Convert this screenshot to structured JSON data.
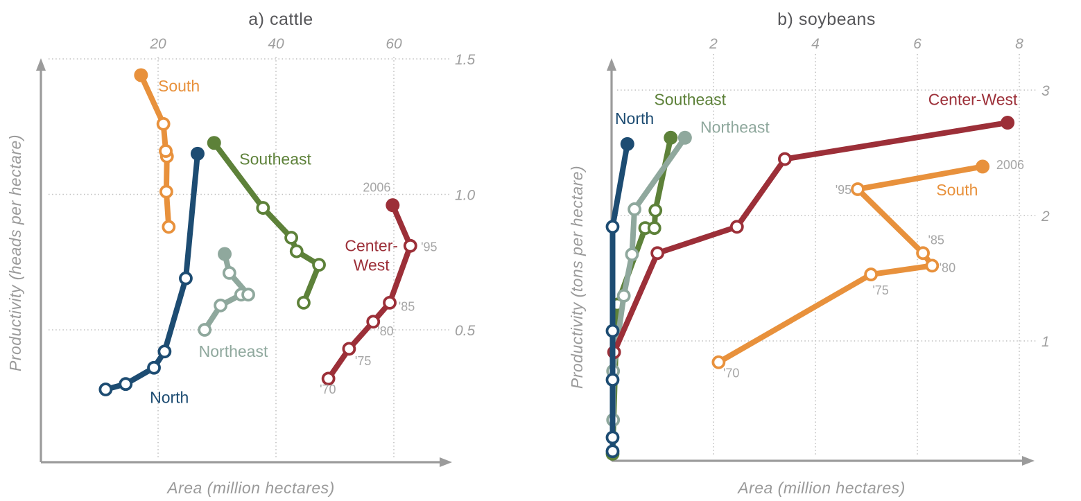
{
  "figure": {
    "background": "#ffffff",
    "style": {
      "axis_color": "#9B9B9B",
      "grid_color": "#C0C0C0",
      "tick_text_color": "#9E9E9E",
      "year_text_color": "#A6A6A6",
      "title_color": "#57575A",
      "marker_fill": "#FFFFFF"
    }
  },
  "chart_data": [
    {
      "type": "line",
      "title": "a) cattle",
      "xlabel": "Area (million hectares)",
      "ylabel": "Productivity (heads per hectare)",
      "xlim": [
        0,
        81
      ],
      "ylim": [
        0,
        1.62
      ],
      "x_ticks": [
        20,
        40,
        60
      ],
      "x_tick_labels": [
        "20",
        "40",
        "60"
      ],
      "y_ticks": [
        0.5,
        1.0,
        1.5
      ],
      "y_tick_labels": [
        "0.5",
        "1.0",
        "1.5"
      ],
      "grid": "dotted",
      "legend_position": "inline-labels",
      "series": [
        {
          "name": "Southeast",
          "color": "#5D8139",
          "years": [
            "1970",
            "1975",
            "1980",
            "1985",
            "1995",
            "2006"
          ],
          "points": [
            [
              44.7,
              0.6
            ],
            [
              47.3,
              0.74
            ],
            [
              43.5,
              0.79
            ],
            [
              42.6,
              0.84
            ],
            [
              37.8,
              0.95
            ],
            [
              29.5,
              1.19
            ]
          ],
          "label": {
            "lines": [
              "Southeast"
            ],
            "x": 33.8,
            "y": 1.11,
            "anchor": "start"
          }
        },
        {
          "name": "Northeast",
          "color": "#8FA89D",
          "years": [
            "1970",
            "1975",
            "1980",
            "1985",
            "1995",
            "2006"
          ],
          "points": [
            [
              27.9,
              0.5
            ],
            [
              30.6,
              0.59
            ],
            [
              34.1,
              0.63
            ],
            [
              35.3,
              0.63
            ],
            [
              32.1,
              0.71
            ],
            [
              31.3,
              0.78
            ]
          ],
          "label": {
            "lines": [
              "Northeast"
            ],
            "x": 26.9,
            "y": 0.4,
            "anchor": "start"
          }
        },
        {
          "name": "Center-West",
          "color": "#9C2F38",
          "years": [
            "1970",
            "1975",
            "1980",
            "1985",
            "1995",
            "2006"
          ],
          "points": [
            [
              48.9,
              0.32
            ],
            [
              52.4,
              0.43
            ],
            [
              56.5,
              0.53
            ],
            [
              59.3,
              0.6
            ],
            [
              62.8,
              0.81
            ],
            [
              59.8,
              0.96
            ]
          ],
          "label": {
            "lines": [
              "Center-",
              "West"
            ],
            "x": 56.2,
            "y": 0.79,
            "anchor": "middle"
          }
        },
        {
          "name": "South",
          "color": "#E8913C",
          "years": [
            "1970",
            "1975",
            "1980",
            "1985",
            "1995",
            "2006"
          ],
          "points": [
            [
              21.8,
              0.88
            ],
            [
              21.4,
              1.01
            ],
            [
              21.5,
              1.14
            ],
            [
              21.3,
              1.16
            ],
            [
              20.9,
              1.26
            ],
            [
              17.1,
              1.44
            ]
          ],
          "label": {
            "lines": [
              "South"
            ],
            "x": 20.0,
            "y": 1.38,
            "anchor": "start"
          }
        },
        {
          "name": "North",
          "color": "#1D4C72",
          "years": [
            "1970",
            "1975",
            "1980",
            "1985",
            "1995",
            "2006"
          ],
          "points": [
            [
              11.1,
              0.28
            ],
            [
              14.5,
              0.3
            ],
            [
              19.3,
              0.36
            ],
            [
              21.1,
              0.42
            ],
            [
              24.7,
              0.69
            ],
            [
              26.7,
              1.15
            ]
          ],
          "label": {
            "lines": [
              "North"
            ],
            "x": 18.6,
            "y": 0.23,
            "anchor": "start"
          }
        }
      ],
      "year_annotations": [
        {
          "text": "2006",
          "x": 57.1,
          "y": 1.01,
          "anchor": "middle"
        },
        {
          "text": "'95",
          "x": 64.6,
          "y": 0.79,
          "anchor": "start"
        },
        {
          "text": "'85",
          "x": 60.8,
          "y": 0.57,
          "anchor": "start"
        },
        {
          "text": "'80",
          "x": 57.2,
          "y": 0.48,
          "anchor": "start"
        },
        {
          "text": "'75",
          "x": 53.4,
          "y": 0.37,
          "anchor": "start"
        },
        {
          "text": "'70",
          "x": 48.8,
          "y": 0.265,
          "anchor": "middle"
        }
      ]
    },
    {
      "type": "line",
      "title": "b) soybeans",
      "xlabel": "Area (million hectares)",
      "ylabel": "Productivity (tons per hectare)",
      "xlim": [
        0,
        8.3
      ],
      "ylim": [
        0,
        3.2
      ],
      "x_ticks": [
        2,
        4,
        6,
        8
      ],
      "x_tick_labels": [
        "2",
        "4",
        "6",
        "8"
      ],
      "y_ticks": [
        1,
        2,
        3
      ],
      "y_tick_labels": [
        "1",
        "2",
        "3"
      ],
      "grid": "dotted",
      "legend_position": "inline-labels",
      "series": [
        {
          "name": "Southeast",
          "color": "#5D8139",
          "years": [
            "1970",
            "1975",
            "1980",
            "1985",
            "1995",
            "2006"
          ],
          "points": [
            [
              0.02,
              0.1
            ],
            [
              0.11,
              1.29
            ],
            [
              0.66,
              1.9
            ],
            [
              0.84,
              1.9
            ],
            [
              0.86,
              2.04
            ],
            [
              1.16,
              2.62
            ]
          ],
          "label": {
            "lines": [
              "Southeast"
            ],
            "x": 1.54,
            "y": 2.88,
            "anchor": "middle"
          }
        },
        {
          "name": "Northeast",
          "color": "#8FA89D",
          "years": [
            "1970",
            "1975",
            "1980",
            "1985",
            "1995",
            "2006"
          ],
          "points": [
            [
              0.03,
              0.37
            ],
            [
              0.03,
              0.76
            ],
            [
              0.24,
              1.36
            ],
            [
              0.4,
              1.69
            ],
            [
              0.45,
              2.05
            ],
            [
              1.44,
              2.62
            ]
          ],
          "label": {
            "lines": [
              "Northeast"
            ],
            "x": 2.42,
            "y": 2.66,
            "anchor": "middle"
          }
        },
        {
          "name": "Center-West",
          "color": "#9C2F38",
          "years": [
            "1970",
            "1975",
            "1980",
            "1985",
            "2006"
          ],
          "points": [
            [
              0.05,
              0.91
            ],
            [
              0.9,
              1.7
            ],
            [
              2.46,
              1.91
            ],
            [
              3.4,
              2.45
            ],
            [
              7.77,
              2.74
            ]
          ],
          "label": {
            "lines": [
              "Center-West"
            ],
            "x": 7.09,
            "y": 2.88,
            "anchor": "middle"
          }
        },
        {
          "name": "South",
          "color": "#E8913C",
          "years": [
            "1970",
            "1975",
            "1980",
            "1985",
            "1995",
            "2006"
          ],
          "points": [
            [
              2.1,
              0.83
            ],
            [
              5.09,
              1.53
            ],
            [
              6.29,
              1.6
            ],
            [
              6.11,
              1.7
            ],
            [
              4.83,
              2.21
            ],
            [
              7.28,
              2.39
            ]
          ],
          "label": {
            "lines": [
              "South"
            ],
            "x": 6.78,
            "y": 2.16,
            "anchor": "middle"
          }
        },
        {
          "name": "North",
          "color": "#1D4C72",
          "years": [
            "1970",
            "1975",
            "1980",
            "1985",
            "1995",
            "2006"
          ],
          "points": [
            [
              0.02,
              0.12
            ],
            [
              0.02,
              0.23
            ],
            [
              0.02,
              0.69
            ],
            [
              0.02,
              1.08
            ],
            [
              0.02,
              1.91
            ],
            [
              0.31,
              2.57
            ]
          ],
          "label": {
            "lines": [
              "North"
            ],
            "x": 0.45,
            "y": 2.73,
            "anchor": "middle"
          }
        }
      ],
      "year_annotations": [
        {
          "text": "2006",
          "x": 7.55,
          "y": 2.37,
          "anchor": "start"
        },
        {
          "text": "'95",
          "x": 4.71,
          "y": 2.17,
          "anchor": "end"
        },
        {
          "text": "'85",
          "x": 6.37,
          "y": 1.77,
          "anchor": "middle"
        },
        {
          "text": "'80",
          "x": 6.59,
          "y": 1.55,
          "anchor": "middle"
        },
        {
          "text": "'75",
          "x": 5.28,
          "y": 1.37,
          "anchor": "middle"
        },
        {
          "text": "'70",
          "x": 2.35,
          "y": 0.71,
          "anchor": "middle"
        }
      ]
    }
  ]
}
